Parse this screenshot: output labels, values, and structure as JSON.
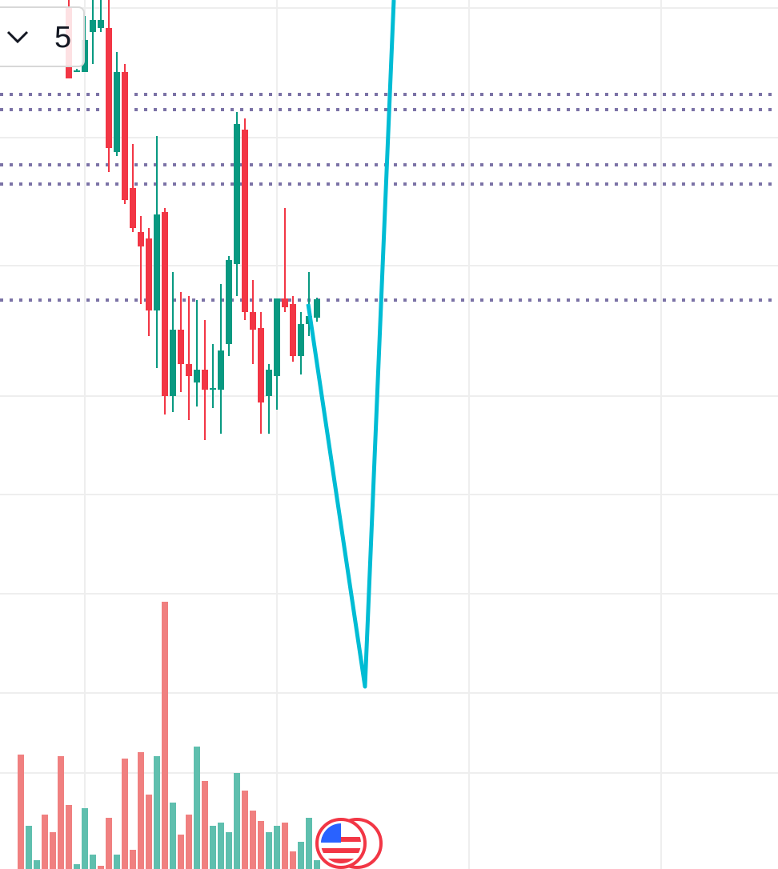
{
  "toolbar": {
    "value": "5"
  },
  "chart_data": {
    "type": "candlestick",
    "categories": [
      null,
      null,
      null,
      null,
      null,
      null,
      null,
      null,
      null,
      null,
      null,
      null,
      null,
      null,
      null,
      null,
      null,
      null,
      null,
      null,
      null,
      null,
      null,
      null,
      null,
      null,
      null,
      null,
      null,
      null,
      null,
      null,
      null,
      null,
      null,
      null,
      null,
      null
    ],
    "open": [
      null,
      null,
      null,
      null,
      null,
      null,
      107.6,
      99.6,
      99.6,
      104.6,
      105.1,
      105.1,
      89.6,
      99.6,
      85.1,
      79.6,
      78.8,
      69.8,
      82.1,
      59.1,
      67.4,
      63.1,
      60.8,
      62.4,
      59.9,
      59.9,
      65.6,
      75.6,
      92.4,
      69.6,
      67.6,
      59.1,
      61.6,
      71.3,
      70.6,
      64.1,
      68.1,
      68.9
    ],
    "close": [
      null,
      null,
      null,
      null,
      null,
      null,
      98.8,
      99.8,
      103.6,
      106.1,
      106.1,
      90.1,
      99.6,
      83.6,
      80.1,
      77.8,
      69.8,
      81.8,
      59.1,
      67.4,
      63.1,
      61.6,
      62.4,
      59.9,
      60.1,
      64.8,
      76.1,
      93.1,
      69.6,
      67.4,
      58.3,
      62.4,
      71.3,
      70.2,
      64.1,
      68.1,
      69.1,
      71.2
    ],
    "high": [
      null,
      null,
      null,
      null,
      null,
      null,
      108.6,
      100,
      106.6,
      108.6,
      108.6,
      108.6,
      102.1,
      100.6,
      90.6,
      81.6,
      80.1,
      91.6,
      82.6,
      74.6,
      72.1,
      71.6,
      71.1,
      68.6,
      65.6,
      73.1,
      76.6,
      94.6,
      93.8,
      73.6,
      69.6,
      63.1,
      71.3,
      82.6,
      71.6,
      69.6,
      74.6,
      71.4
    ],
    "low": [
      null,
      null,
      null,
      null,
      null,
      null,
      98.8,
      99.6,
      99.6,
      100.6,
      104.6,
      87.1,
      89.1,
      83.1,
      79.6,
      70.6,
      66.6,
      62.6,
      56.8,
      57.1,
      59.6,
      56.1,
      57.8,
      53.6,
      57.6,
      54.4,
      64.1,
      71.6,
      68.6,
      63.1,
      54.4,
      54.4,
      57.4,
      69.6,
      63.4,
      61.8,
      66.6,
      68.4
    ],
    "up_color": "#089981",
    "down_color": "#f23645",
    "ylim": [
      0,
      108.6
    ],
    "volume": {
      "values": [
        143,
        54,
        11,
        68,
        46,
        141,
        80,
        6,
        76,
        18,
        4,
        64,
        18,
        138,
        24,
        146,
        93,
        141,
        334,
        83,
        43,
        68,
        153,
        110,
        54,
        58,
        46,
        120,
        98,
        73,
        60,
        46,
        54,
        58,
        22,
        34,
        64,
        11
      ],
      "colors": [
        "#f08080",
        "#5fbfae",
        "#5fbfae",
        "#f08080",
        "#f08080",
        "#f08080",
        "#f08080",
        "#5fbfae",
        "#5fbfae",
        "#5fbfae",
        "#f08080",
        "#f08080",
        "#5fbfae",
        "#f08080",
        "#f08080",
        "#f08080",
        "#f08080",
        "#5fbfae",
        "#f08080",
        "#5fbfae",
        "#f08080",
        "#f08080",
        "#5fbfae",
        "#f08080",
        "#5fbfae",
        "#5fbfae",
        "#5fbfae",
        "#5fbfae",
        "#f08080",
        "#f08080",
        "#f08080",
        "#5fbfae",
        "#5fbfae",
        "#f08080",
        "#f08080",
        "#5fbfae",
        "#5fbfae",
        "#5fbfae"
      ],
      "y2lim": [
        0,
        400
      ]
    },
    "levels": {
      "values": [
        96.8,
        94.9,
        88.0,
        85.6,
        71.1
      ],
      "color": "#7b72a6"
    },
    "drawing": {
      "x": [
        35.9,
        43,
        46.6
      ],
      "values": [
        70.6,
        22.8,
        108.6
      ],
      "color": "#00bcd4"
    }
  }
}
